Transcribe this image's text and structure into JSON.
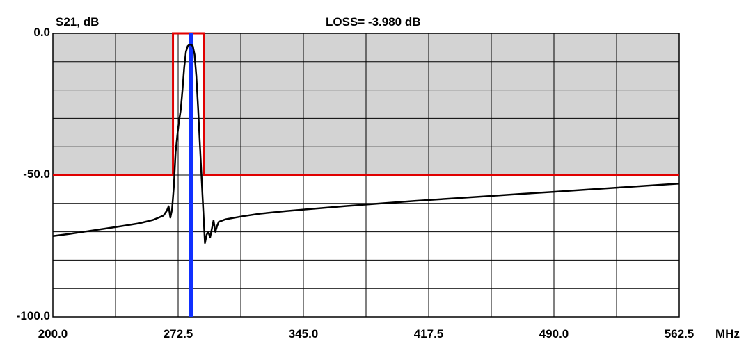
{
  "chart_data": {
    "type": "line",
    "title": "LOSS=  -3.980 dB",
    "ylabel": "S21, dB",
    "xunit": "MHz",
    "xlim": [
      200.0,
      562.5
    ],
    "ylim": [
      -100.0,
      0.0
    ],
    "x_ticks": [
      200.0,
      272.5,
      345.0,
      417.5,
      490.0,
      562.5
    ],
    "x_tick_labels": [
      "200.0",
      "272.5",
      "345.0",
      "417.5",
      "490.0",
      "562.5"
    ],
    "y_tick_labels": [
      {
        "value": 0.0,
        "label": "0.0"
      },
      {
        "value": -50.0,
        "label": "-50.0"
      },
      {
        "value": -100.0,
        "label": "-100.0"
      }
    ],
    "grid": true,
    "grid_divisions": {
      "x": 10,
      "y": 10
    },
    "mask": {
      "level": -50.0,
      "passband": [
        269.5,
        287.5
      ],
      "shaded_color": "#d3d3d3",
      "line_color": "#e00000"
    },
    "markers": {
      "color": "#1030ff",
      "x": [
        279.5,
        280.5
      ]
    },
    "series": [
      {
        "color": "#000000",
        "points": [
          [
            200.0,
            -71.5
          ],
          [
            210.0,
            -70.7
          ],
          [
            220.0,
            -69.8
          ],
          [
            230.0,
            -68.9
          ],
          [
            240.0,
            -68.0
          ],
          [
            250.0,
            -67.0
          ],
          [
            258.0,
            -65.8
          ],
          [
            264.0,
            -64.3
          ],
          [
            266.0,
            -62.5
          ],
          [
            267.0,
            -61.0
          ],
          [
            268.0,
            -65.0
          ],
          [
            269.0,
            -62.0
          ],
          [
            270.0,
            -54.0
          ],
          [
            271.0,
            -42.0
          ],
          [
            272.0,
            -36.0
          ],
          [
            273.0,
            -31.0
          ],
          [
            274.0,
            -27.0
          ],
          [
            275.0,
            -20.0
          ],
          [
            276.0,
            -12.0
          ],
          [
            277.0,
            -6.5
          ],
          [
            278.0,
            -4.5
          ],
          [
            279.0,
            -3.98
          ],
          [
            280.0,
            -3.98
          ],
          [
            281.0,
            -4.5
          ],
          [
            282.0,
            -7.5
          ],
          [
            283.0,
            -15.0
          ],
          [
            284.0,
            -26.0
          ],
          [
            285.0,
            -38.0
          ],
          [
            286.0,
            -50.0
          ],
          [
            287.0,
            -62.0
          ],
          [
            288.0,
            -74.0
          ],
          [
            289.0,
            -71.0
          ],
          [
            290.0,
            -70.0
          ],
          [
            291.0,
            -72.0
          ],
          [
            292.0,
            -69.0
          ],
          [
            293.0,
            -66.0
          ],
          [
            294.0,
            -70.0
          ],
          [
            295.0,
            -68.0
          ],
          [
            296.0,
            -66.5
          ],
          [
            300.0,
            -65.6
          ],
          [
            310.0,
            -64.5
          ],
          [
            320.0,
            -63.6
          ],
          [
            335.0,
            -62.7
          ],
          [
            350.0,
            -61.9
          ],
          [
            370.0,
            -60.9
          ],
          [
            390.0,
            -60.0
          ],
          [
            410.0,
            -59.1
          ],
          [
            430.0,
            -58.3
          ],
          [
            450.0,
            -57.5
          ],
          [
            470.0,
            -56.7
          ],
          [
            490.0,
            -55.9
          ],
          [
            510.0,
            -55.1
          ],
          [
            530.0,
            -54.3
          ],
          [
            550.0,
            -53.5
          ],
          [
            562.5,
            -53.0
          ]
        ]
      }
    ]
  }
}
